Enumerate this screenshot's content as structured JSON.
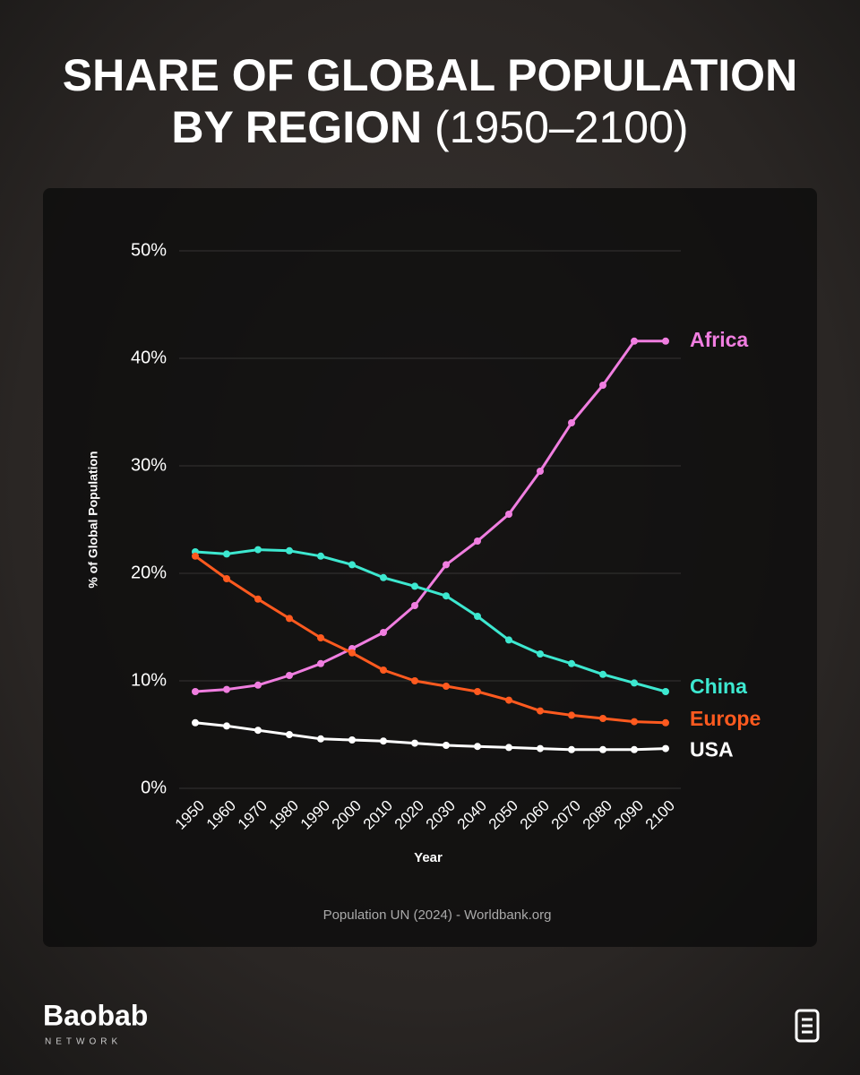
{
  "chart_data": {
    "type": "line",
    "title": [
      "SHARE OF GLOBAL POPULATION",
      "BY REGION"
    ],
    "subtitle": "(1950–2100)",
    "y_label": "% of Global Population",
    "x_label": "Year",
    "source": "Population UN (2024) - Worldbank.org",
    "x": [
      1950,
      1960,
      1970,
      1980,
      1990,
      2000,
      2010,
      2020,
      2030,
      2040,
      2050,
      2060,
      2070,
      2080,
      2090,
      2100
    ],
    "xlim": [
      1950,
      2100
    ],
    "xticks": [
      1950,
      1960,
      1970,
      1980,
      1990,
      2000,
      2010,
      2020,
      2030,
      2040,
      2050,
      2060,
      2070,
      2080,
      2090,
      2100
    ],
    "ylim": [
      0,
      50
    ],
    "yticks": [
      {
        "value": 0,
        "label": "0%"
      },
      {
        "value": 10,
        "label": "10%"
      },
      {
        "value": 20,
        "label": "20%"
      },
      {
        "value": 30,
        "label": "30%"
      },
      {
        "value": 40,
        "label": "40%"
      },
      {
        "value": 50,
        "label": "50%"
      }
    ],
    "grid": true,
    "series": [
      {
        "name": "Africa",
        "color": "#f07ee0",
        "values": [
          9.0,
          9.2,
          9.6,
          10.5,
          11.6,
          13.0,
          14.5,
          17.0,
          20.8,
          23.0,
          25.5,
          29.5,
          34.0,
          37.5,
          41.6,
          41.6
        ]
      },
      {
        "name": "China",
        "color": "#3de8d0",
        "values": [
          22.0,
          21.8,
          22.2,
          22.1,
          21.6,
          20.8,
          19.6,
          18.8,
          17.9,
          16.0,
          13.8,
          12.5,
          11.6,
          10.6,
          9.8,
          9.0
        ]
      },
      {
        "name": "Europe",
        "color": "#ff5a1f",
        "values": [
          21.6,
          19.5,
          17.6,
          15.8,
          14.0,
          12.6,
          11.0,
          10.0,
          9.5,
          9.0,
          8.2,
          7.2,
          6.8,
          6.5,
          6.2,
          6.1
        ]
      },
      {
        "name": "USA",
        "color": "#ffffff",
        "values": [
          6.1,
          5.8,
          5.4,
          5.0,
          4.6,
          4.5,
          4.4,
          4.2,
          4.0,
          3.9,
          3.8,
          3.7,
          3.6,
          3.6,
          3.6,
          3.7
        ]
      }
    ]
  },
  "brand": {
    "name": "Baobab",
    "tagline": "NETWORK"
  }
}
